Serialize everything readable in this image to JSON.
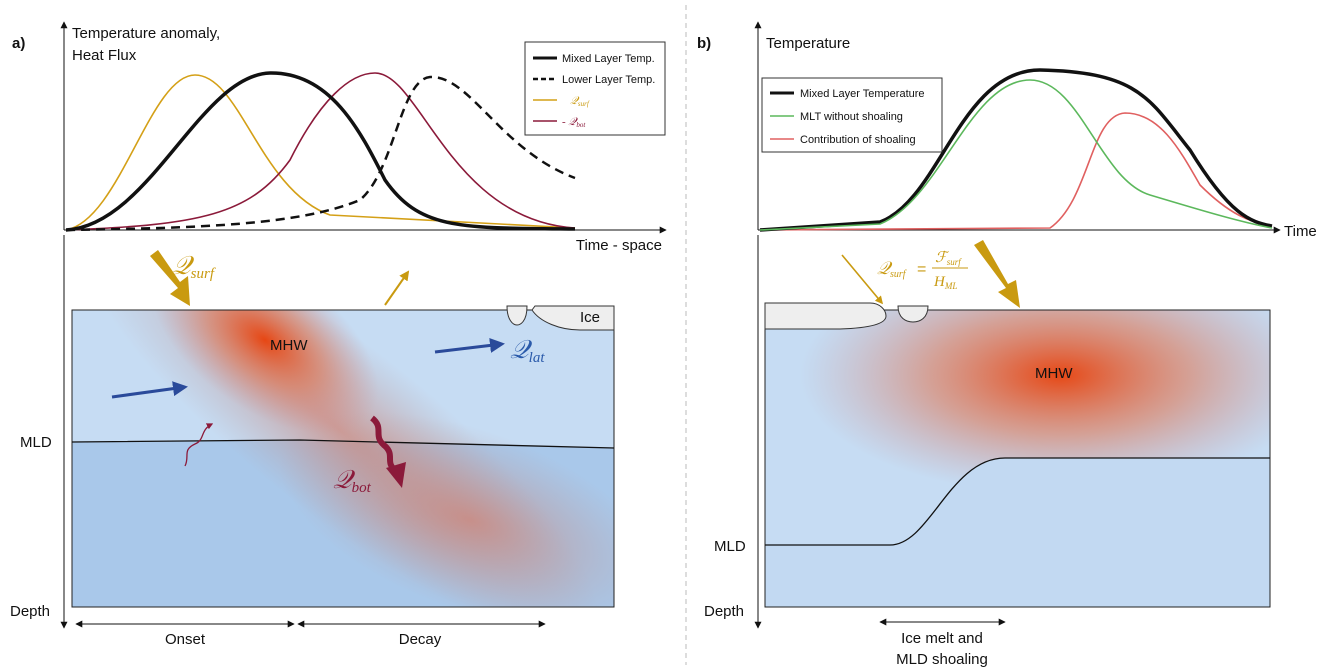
{
  "panel_a": {
    "label": "a)",
    "y_axis_label": [
      "Temperature anomaly,",
      "Heat Flux"
    ],
    "x_axis_label": "Time - space",
    "legend": [
      {
        "text": "Mixed Layer Temp."
      },
      {
        "text": "Lower Layer Temp."
      },
      {
        "symbol": "𝒬",
        "sub": "surf"
      },
      {
        "symbol": "- 𝒬",
        "sub": "bot"
      }
    ],
    "q_surf": {
      "symbol": "𝒬",
      "sub": "surf"
    },
    "q_lat": {
      "symbol": "𝒬",
      "sub": "lat"
    },
    "q_bot": {
      "symbol": "𝒬",
      "sub": "bot"
    },
    "mhw": "MHW",
    "ice": "Ice",
    "mld": "MLD",
    "depth": "Depth",
    "onset": "Onset",
    "decay": "Decay"
  },
  "panel_b": {
    "label": "b)",
    "y_axis_label": "Temperature",
    "x_axis_label": "Time",
    "legend": [
      "Mixed Layer Temperature",
      "MLT without shoaling",
      "Contribution of shoaling"
    ],
    "formula": {
      "lhs": {
        "symbol": "𝒬",
        "sub": "surf"
      },
      "equals": "=",
      "numerator": {
        "symbol": "ℱ",
        "sub": "surf"
      },
      "denominator": {
        "symbol": "H",
        "sub": "ML"
      }
    },
    "mhw": "MHW",
    "mld": "MLD",
    "depth": "Depth",
    "annotation": [
      "Ice melt and",
      "MLD shoaling"
    ]
  }
}
